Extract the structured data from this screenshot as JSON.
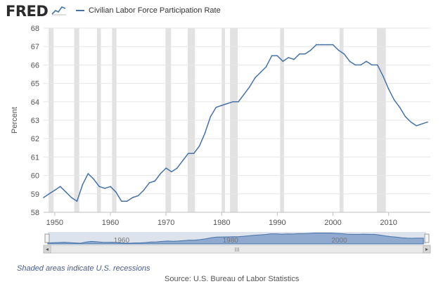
{
  "header": {
    "logo_text": "FRED",
    "legend_label": "Civilian Labor Force Participation Rate",
    "logo_icon": "line-chart-icon"
  },
  "colors": {
    "series": "#4572a7",
    "recession": "#e2e2e2",
    "grid": "#e6e6e6",
    "navigator_fill": "#8fa9cf",
    "navigator_bg": "#dde3ed",
    "scrollbar": "#e6e6e6"
  },
  "chart_data": {
    "type": "line",
    "title": "",
    "xlabel": "",
    "ylabel": "Percent",
    "xlim": [
      1948,
      2017.5
    ],
    "ylim": [
      58,
      68
    ],
    "x_ticks": [
      1950,
      1960,
      1970,
      1980,
      1990,
      2000,
      2010
    ],
    "y_ticks": [
      58,
      59,
      60,
      61,
      62,
      63,
      64,
      65,
      66,
      67,
      68
    ],
    "grid": true,
    "legend": "top-left",
    "series": [
      {
        "name": "Civilian Labor Force Participation Rate",
        "x": [
          1948,
          1949,
          1950,
          1951,
          1952,
          1953,
          1954,
          1955,
          1956,
          1957,
          1958,
          1959,
          1960,
          1961,
          1962,
          1963,
          1964,
          1965,
          1966,
          1967,
          1968,
          1969,
          1970,
          1971,
          1972,
          1973,
          1974,
          1975,
          1976,
          1977,
          1978,
          1979,
          1980,
          1981,
          1982,
          1983,
          1984,
          1985,
          1986,
          1987,
          1988,
          1989,
          1990,
          1991,
          1992,
          1993,
          1994,
          1995,
          1996,
          1997,
          1998,
          1999,
          2000,
          2001,
          2002,
          2003,
          2004,
          2005,
          2006,
          2007,
          2008,
          2009,
          2010,
          2011,
          2012,
          2013,
          2014,
          2015,
          2016,
          2017
        ],
        "values": [
          58.8,
          59.0,
          59.2,
          59.4,
          59.1,
          58.8,
          58.6,
          59.5,
          60.1,
          59.8,
          59.4,
          59.3,
          59.4,
          59.1,
          58.6,
          58.6,
          58.8,
          58.9,
          59.2,
          59.6,
          59.7,
          60.1,
          60.4,
          60.2,
          60.4,
          60.8,
          61.2,
          61.2,
          61.6,
          62.3,
          63.2,
          63.7,
          63.8,
          63.9,
          64.0,
          64.0,
          64.4,
          64.8,
          65.3,
          65.6,
          65.9,
          66.5,
          66.5,
          66.2,
          66.4,
          66.3,
          66.6,
          66.6,
          66.8,
          67.1,
          67.1,
          67.1,
          67.1,
          66.8,
          66.6,
          66.2,
          66.0,
          66.0,
          66.2,
          66.0,
          66.0,
          65.4,
          64.7,
          64.1,
          63.7,
          63.2,
          62.9,
          62.7,
          62.8,
          62.9
        ]
      }
    ],
    "recessions": [
      [
        1948.9,
        1949.8
      ],
      [
        1953.5,
        1954.4
      ],
      [
        1957.6,
        1958.3
      ],
      [
        1960.3,
        1961.1
      ],
      [
        1969.9,
        1970.9
      ],
      [
        1973.9,
        1975.2
      ],
      [
        1980.0,
        1980.6
      ],
      [
        1981.5,
        1982.9
      ],
      [
        1990.5,
        1991.2
      ],
      [
        2001.2,
        2001.9
      ],
      [
        2007.9,
        2009.5
      ]
    ],
    "navigator_labels": [
      "1960",
      "1980",
      "2000"
    ],
    "navigator_scroll_glyph": "III"
  },
  "footer": {
    "note": "Shaded areas indicate U.S. recessions",
    "source": "Source: U.S. Bureau of Labor Statistics"
  }
}
